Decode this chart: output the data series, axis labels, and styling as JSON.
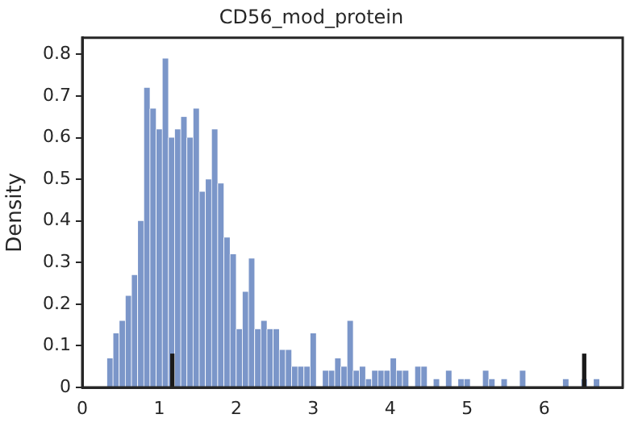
{
  "chart_data": {
    "type": "histogram",
    "title": "CD56_mod_protein",
    "ylabel": "Density",
    "bins": [
      0.32,
      0.4,
      0.48,
      0.56,
      0.64,
      0.72,
      0.8,
      0.88,
      0.96,
      1.04,
      1.12,
      1.2,
      1.28,
      1.36,
      1.44,
      1.52,
      1.6,
      1.68,
      1.76,
      1.84,
      1.92,
      2,
      2.08,
      2.16,
      2.24,
      2.32,
      2.4,
      2.48,
      2.56,
      2.64,
      2.72,
      2.8,
      2.88,
      2.96,
      3.04,
      3.12,
      3.2,
      3.28,
      3.36,
      3.44,
      3.52,
      3.6,
      3.68,
      3.76,
      3.84,
      3.92,
      4,
      4.08,
      4.16,
      4.24,
      4.32,
      4.4,
      4.48,
      4.56,
      4.64,
      4.72,
      4.8,
      4.88,
      4.96,
      5.04,
      5.12,
      5.2,
      5.28,
      5.36,
      5.44,
      5.52,
      5.6,
      5.68,
      5.76,
      5.84,
      5.92,
      6,
      6.08,
      6.16,
      6.24,
      6.32,
      6.4,
      6.48,
      6.56,
      6.64,
      6.72
    ],
    "values": [
      0.07,
      0.13,
      0.16,
      0.22,
      0.27,
      0.4,
      0.72,
      0.67,
      0.62,
      0.79,
      0.6,
      0.62,
      0.65,
      0.6,
      0.67,
      0.47,
      0.5,
      0.62,
      0.49,
      0.36,
      0.32,
      0.14,
      0.23,
      0.31,
      0.14,
      0.16,
      0.14,
      0.14,
      0.09,
      0.09,
      0.05,
      0.05,
      0.05,
      0.13,
      0,
      0.04,
      0.04,
      0.07,
      0.05,
      0.16,
      0.04,
      0.05,
      0.02,
      0.04,
      0.04,
      0.04,
      0.07,
      0.04,
      0.04,
      0,
      0.05,
      0.05,
      0,
      0.02,
      0,
      0.04,
      0,
      0.02,
      0.02,
      0,
      0,
      0.04,
      0.02,
      0,
      0.02,
      0,
      0,
      0.04,
      0,
      0,
      0,
      0,
      0,
      0,
      0.02,
      0,
      0,
      0.02,
      0,
      0.02
    ],
    "color": "#7b96c9",
    "series": [
      {
        "type": "bar",
        "x": [
          1.17,
          6.52
        ],
        "values": [
          0.08,
          0.08
        ],
        "color": "#1a1a1a"
      }
    ],
    "xlim": [
      0,
      7.02
    ],
    "xticks": [
      0,
      1,
      2,
      3,
      4,
      5,
      6
    ],
    "ylim": [
      0,
      0.84
    ],
    "yticks": [
      0,
      0.1,
      0.2,
      0.3,
      0.4,
      0.5,
      0.6,
      0.7,
      0.8
    ],
    "grid": false,
    "legend": false
  }
}
